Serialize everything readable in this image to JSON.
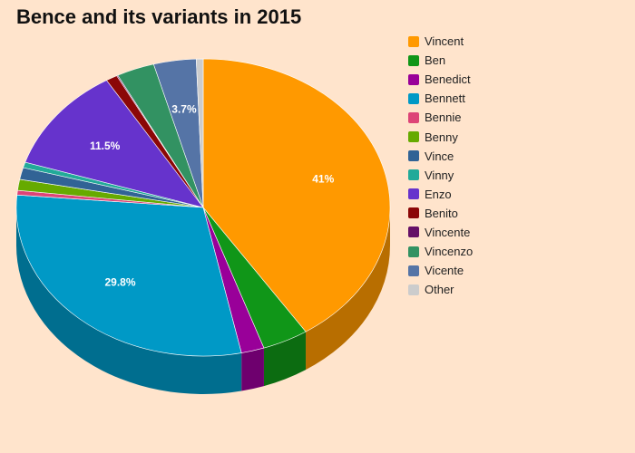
{
  "chart_data": {
    "type": "pie",
    "title": "Bence and its variants in 2015",
    "legend_position": "right",
    "slices": [
      {
        "label": "Vincent",
        "value": 41.0,
        "color": "#ff9900",
        "display_label": "41%"
      },
      {
        "label": "Ben",
        "value": 4.0,
        "color": "#109618"
      },
      {
        "label": "Benedict",
        "value": 2.0,
        "color": "#990099"
      },
      {
        "label": "Bennett",
        "value": 29.8,
        "color": "#0099c6",
        "display_label": "29.8%"
      },
      {
        "label": "Bennie",
        "value": 0.5,
        "color": "#dd4477"
      },
      {
        "label": "Benny",
        "value": 1.2,
        "color": "#66aa00"
      },
      {
        "label": "Vince",
        "value": 1.3,
        "color": "#316395"
      },
      {
        "label": "Vinny",
        "value": 0.6,
        "color": "#22aa99"
      },
      {
        "label": "Enzo",
        "value": 11.5,
        "color": "#6633cc",
        "display_label": "11.5%"
      },
      {
        "label": "Benito",
        "value": 1.0,
        "color": "#8b0707"
      },
      {
        "label": "Vincente",
        "value": 0.1,
        "color": "#651067"
      },
      {
        "label": "Vincenzo",
        "value": 3.3,
        "color": "#329262"
      },
      {
        "label": "Vicente",
        "value": 3.7,
        "color": "#5574a6",
        "display_label": "3.7%"
      },
      {
        "label": "Other",
        "value": 0.6,
        "color": "#cccccc"
      }
    ]
  }
}
